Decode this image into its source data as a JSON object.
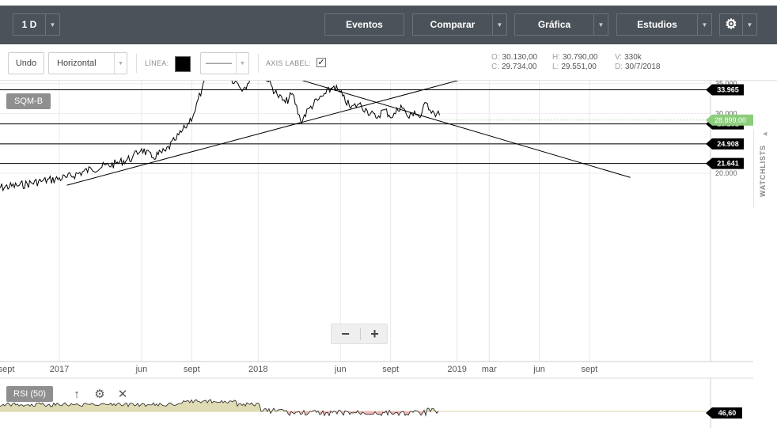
{
  "toolbar": {
    "interval": "1 D",
    "eventos": "Eventos",
    "comparar": "Comparar",
    "grafica": "Gráfica",
    "estudios": "Estudios"
  },
  "drawing_toolbar": {
    "undo": "Undo",
    "tool": "Horizontal",
    "line_label": "LÍNEA:",
    "line_color": "#000000",
    "line_style": "———",
    "axis_label": "AXIS LABEL:",
    "axis_label_checked": "✓"
  },
  "ohlc": {
    "open_key": "O:",
    "open": "30.130,00",
    "high_key": "H:",
    "high": "30.790,00",
    "volume_key": "V:",
    "volume": "330k",
    "close_key": "C:",
    "close": "29.734,00",
    "low_key": "L:",
    "low": "29.551,00",
    "date_key": "D:",
    "date": "30/7/2018"
  },
  "chart": {
    "ticker": "SQM-B",
    "zoom_out": "−",
    "zoom_in": "+"
  },
  "rsi": {
    "label": "RSI (50)",
    "value": "46,60"
  },
  "watchlists": "WATCHLISTS",
  "colors": {
    "toolbar_bg": "#4b5259",
    "price_line": "#000000",
    "current_price_badge": "#8ccd7c",
    "level_badge": "#000000",
    "rsi_above": "#dfdcb4",
    "rsi_below": "#f3b6b6"
  },
  "chart_data": {
    "type": "line",
    "series": [
      {
        "dates": [
          "2016-09-01",
          "2016-10-15",
          "2016-12-01",
          "2017-01-15",
          "2017-03-01",
          "2017-04-15",
          "2017-05-15",
          "2017-06-01",
          "2017-06-20",
          "2017-07-15",
          "2017-08-01",
          "2017-08-20",
          "2017-09-05",
          "2017-09-20",
          "2017-10-05",
          "2017-10-20",
          "2017-11-05",
          "2017-11-20",
          "2017-12-05",
          "2017-12-20",
          "2018-01-05",
          "2018-01-20",
          "2018-02-05",
          "2018-02-20",
          "2018-03-05",
          "2018-03-20",
          "2018-04-05",
          "2018-04-20",
          "2018-05-05",
          "2018-05-20",
          "2018-06-05",
          "2018-06-20",
          "2018-07-05",
          "2018-07-20",
          "2018-08-05",
          "2018-08-20",
          "2018-09-05",
          "2018-09-20",
          "2018-10-05",
          "2018-10-15",
          "2018-10-25",
          "2018-11-05",
          "2018-11-20",
          "2018-11-30"
        ],
        "values": [
          17500,
          17900,
          18700,
          19300,
          20700,
          21600,
          22600,
          24100,
          22600,
          23700,
          25500,
          27600,
          30000,
          34200,
          36800,
          37600,
          36400,
          35400,
          34100,
          36300,
          37800,
          35300,
          33100,
          31800,
          33300,
          28700,
          30900,
          32200,
          33300,
          34600,
          32900,
          30900,
          31600,
          30500,
          29300,
          30600,
          29400,
          31400,
          29200,
          30400,
          29300,
          31800,
          30100,
          29700
        ]
      }
    ],
    "x_ticks": [
      "sept",
      "2017",
      "jun",
      "sept",
      "2018",
      "jun",
      "sept",
      "2019",
      "mar",
      "jun",
      "sept"
    ],
    "y_ticks": [
      20000,
      25000,
      30000,
      35000,
      40000
    ],
    "y_tick_labels": [
      "20.000",
      "25.000",
      "30.000",
      "35.000",
      "40.000"
    ],
    "ylim": [
      17500,
      40500
    ],
    "current_price": {
      "value": 28899,
      "label": "28.899,00"
    },
    "horizontal_lines": [
      {
        "value": 38450,
        "label": "38.450"
      },
      {
        "value": 36516,
        "label": "36.516"
      },
      {
        "value": 33965,
        "label": "33.965"
      },
      {
        "value": 28251,
        "label": "28.251"
      },
      {
        "value": 24908,
        "label": "24.908"
      },
      {
        "value": 21641,
        "label": "21.641"
      }
    ],
    "trend_lines": [
      {
        "from": {
          "date": "2017-01-15",
          "value": 18000
        },
        "to": {
          "date": "2019-08-15",
          "value": 41000
        }
      },
      {
        "from": {
          "date": "2017-09-01",
          "value": 41000
        },
        "to": {
          "date": "2019-11-15",
          "value": 19300
        }
      }
    ],
    "rsi_value": 46.6
  }
}
